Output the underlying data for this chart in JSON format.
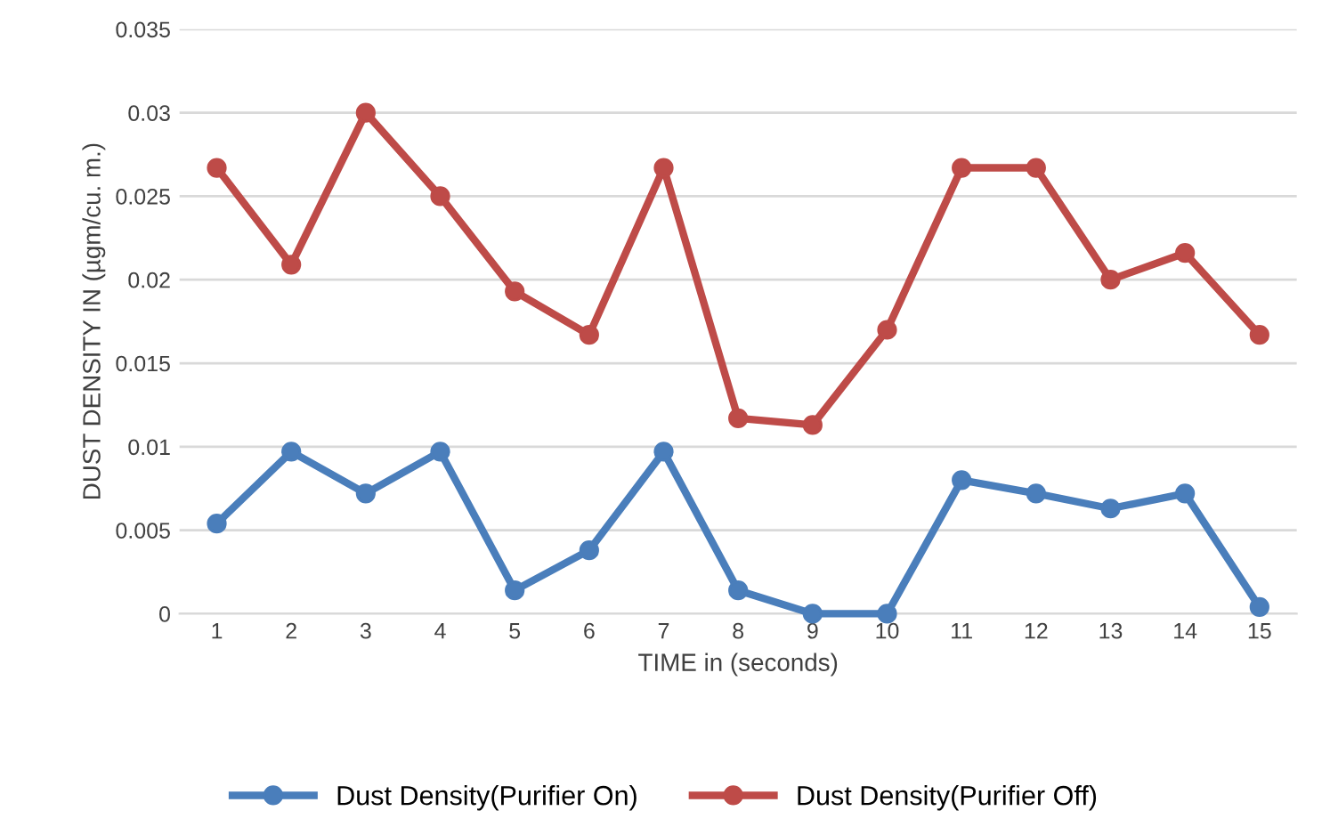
{
  "chart_data": {
    "type": "line",
    "xlabel": "TIME in (seconds)",
    "ylabel": "DUST DENSITY IN (µgm/cu. m.)",
    "categories": [
      "1",
      "2",
      "3",
      "4",
      "5",
      "6",
      "7",
      "8",
      "9",
      "10",
      "11",
      "12",
      "13",
      "14",
      "15"
    ],
    "series": [
      {
        "name": "Dust Density(Purifier On)",
        "color": "#4a7ebb",
        "values": [
          0.0054,
          0.0097,
          0.0072,
          0.0097,
          0.0014,
          0.0038,
          0.0097,
          0.0014,
          0.0,
          0.0,
          0.008,
          0.0072,
          0.0063,
          0.0072,
          0.0004
        ]
      },
      {
        "name": "Dust Density(Purifier Off)",
        "color": "#be4b48",
        "values": [
          0.0267,
          0.0209,
          0.03,
          0.025,
          0.0193,
          0.0167,
          0.0267,
          0.0117,
          0.0113,
          0.017,
          0.0267,
          0.0267,
          0.02,
          0.0216,
          0.0167
        ]
      }
    ],
    "ylim": [
      0,
      0.035
    ],
    "yticks": [
      0,
      0.005,
      0.01,
      0.015,
      0.02,
      0.025,
      0.03,
      0.035
    ],
    "grid": "y",
    "legend": "bottom",
    "marker": "circle",
    "line_style": "solid"
  }
}
